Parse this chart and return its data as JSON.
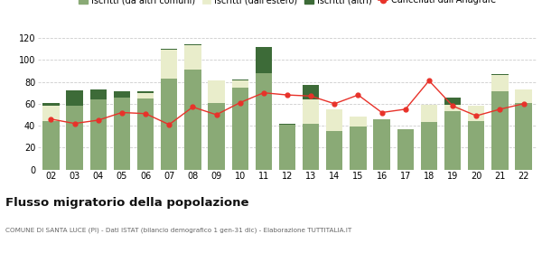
{
  "years": [
    "02",
    "03",
    "04",
    "05",
    "06",
    "07",
    "08",
    "09",
    "10",
    "11",
    "12",
    "13",
    "14",
    "15",
    "16",
    "17",
    "18",
    "19",
    "20",
    "21",
    "22"
  ],
  "iscritti_comuni": [
    44,
    58,
    64,
    66,
    65,
    83,
    91,
    61,
    75,
    88,
    41,
    42,
    35,
    39,
    46,
    37,
    43,
    53,
    44,
    71,
    61
  ],
  "iscritti_estero": [
    14,
    0,
    0,
    0,
    5,
    26,
    22,
    20,
    6,
    0,
    0,
    22,
    20,
    9,
    0,
    0,
    16,
    6,
    14,
    15,
    12
  ],
  "iscritti_altri": [
    3,
    14,
    9,
    5,
    1,
    1,
    1,
    0,
    1,
    24,
    1,
    13,
    0,
    0,
    0,
    0,
    0,
    7,
    0,
    1,
    0
  ],
  "cancellati": [
    46,
    42,
    45,
    52,
    51,
    41,
    57,
    50,
    61,
    70,
    68,
    67,
    60,
    68,
    52,
    55,
    81,
    58,
    49,
    55,
    60
  ],
  "color_comuni": "#8aaa76",
  "color_estero": "#e9edcb",
  "color_altri": "#3d6b38",
  "color_cancellati": "#e8322a",
  "ylim": [
    0,
    120
  ],
  "yticks": [
    0,
    20,
    40,
    60,
    80,
    100,
    120
  ],
  "title": "Flusso migratorio della popolazione",
  "subtitle": "COMUNE DI SANTA LUCE (PI) - Dati ISTAT (bilancio demografico 1 gen-31 dic) - Elaborazione TUTTITALIA.IT",
  "bg_color": "#ffffff",
  "grid_color": "#cccccc"
}
